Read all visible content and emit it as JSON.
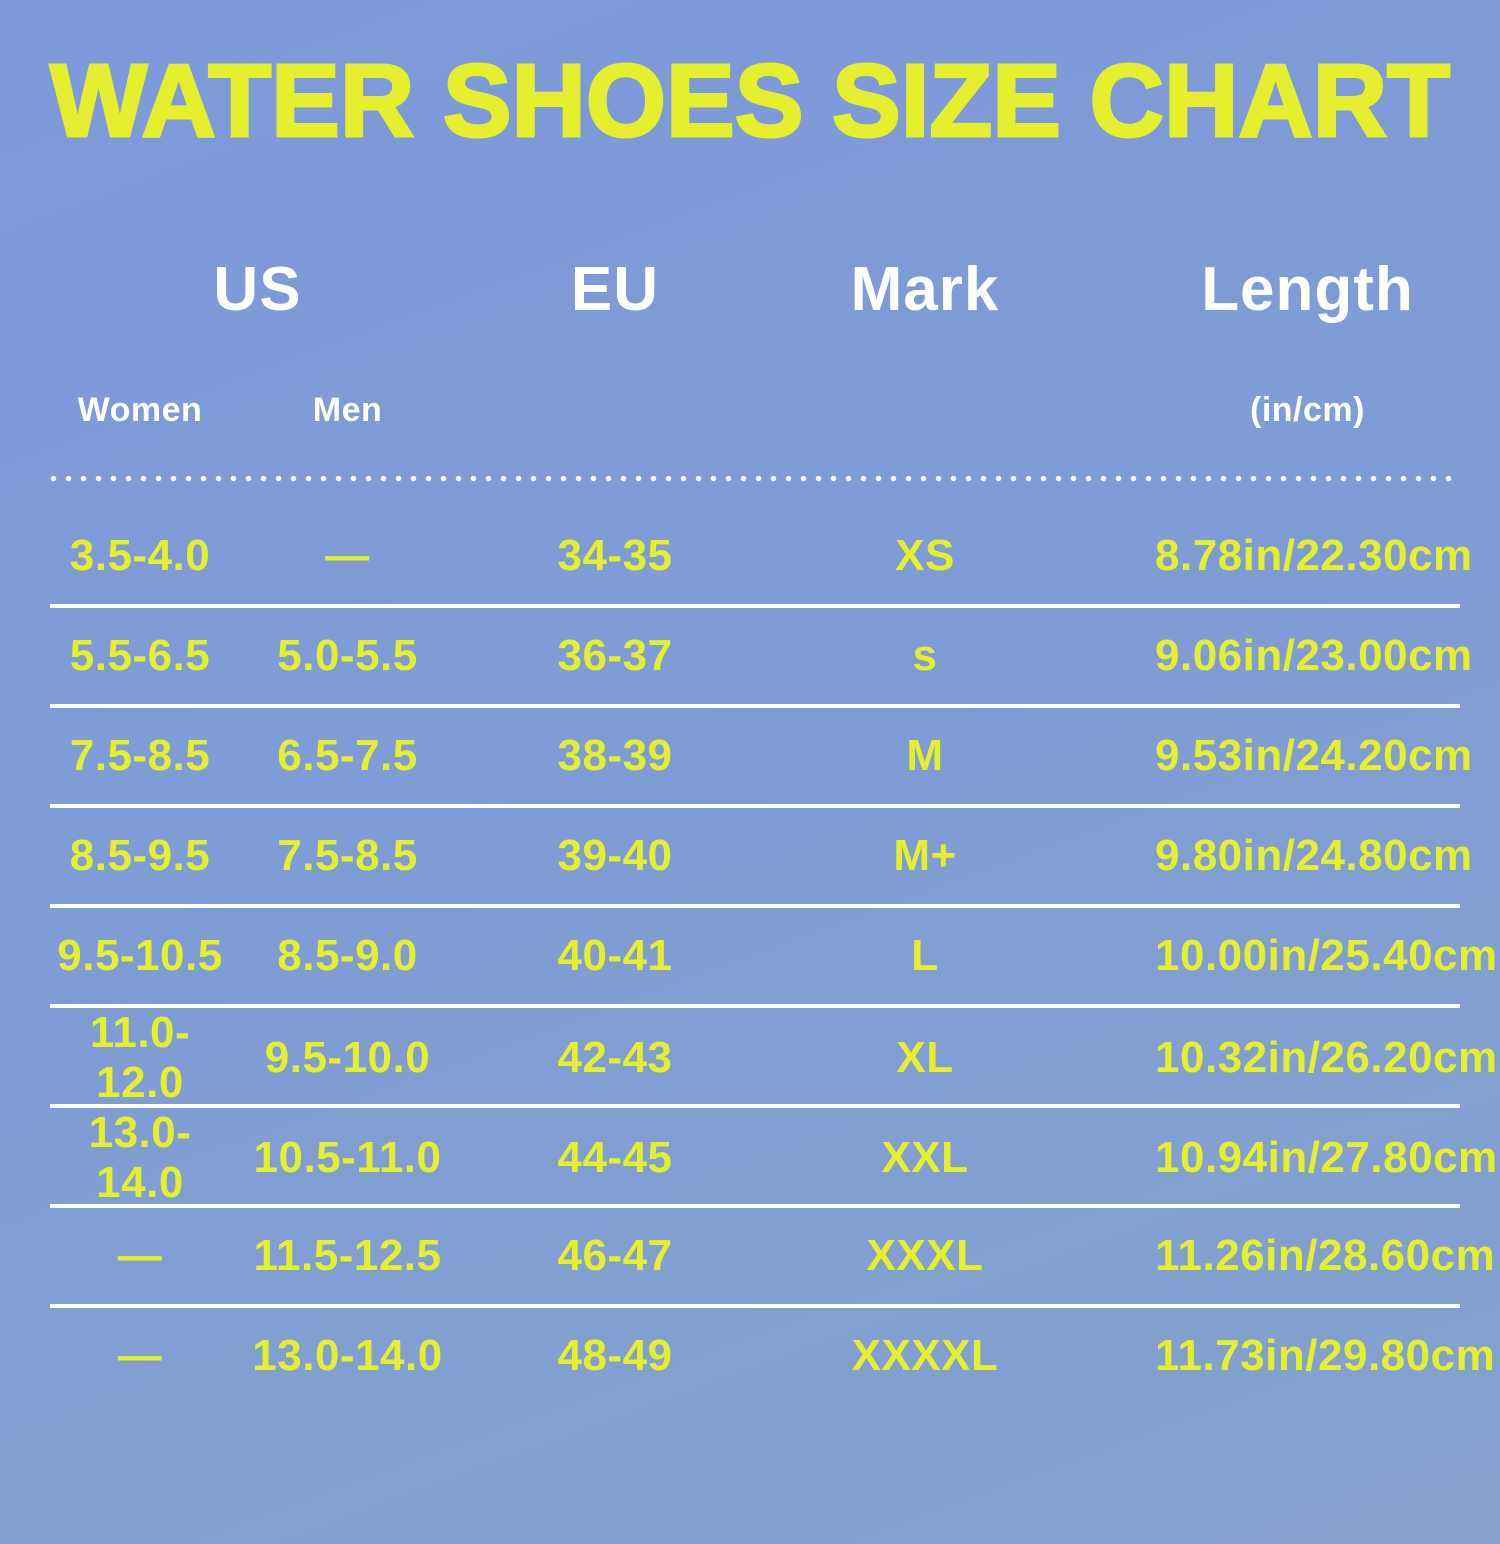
{
  "title": "WATER SHOES SIZE CHART",
  "colors": {
    "background_top": "#7d99da",
    "background_bottom": "#84a2cc",
    "accent_yellow": "#e5ef2e",
    "text_white": "#ffffff"
  },
  "table": {
    "headers": {
      "us": "US",
      "eu": "EU",
      "mark": "Mark",
      "length": "Length"
    },
    "subheaders": {
      "women": "Women",
      "men": "Men",
      "length_unit": "(in/cm)"
    },
    "rows": [
      {
        "women": "3.5-4.0",
        "men": "—",
        "eu": "34-35",
        "mark": "XS",
        "length": "8.78in/22.30cm"
      },
      {
        "women": "5.5-6.5",
        "men": "5.0-5.5",
        "eu": "36-37",
        "mark": "s",
        "length": "9.06in/23.00cm"
      },
      {
        "women": "7.5-8.5",
        "men": "6.5-7.5",
        "eu": "38-39",
        "mark": "M",
        "length": "9.53in/24.20cm"
      },
      {
        "women": "8.5-9.5",
        "men": "7.5-8.5",
        "eu": "39-40",
        "mark": "M+",
        "length": "9.80in/24.80cm"
      },
      {
        "women": "9.5-10.5",
        "men": "8.5-9.0",
        "eu": "40-41",
        "mark": "L",
        "length": "10.00in/25.40cm"
      },
      {
        "women": "11.0-12.0",
        "men": "9.5-10.0",
        "eu": "42-43",
        "mark": "XL",
        "length": "10.32in/26.20cm"
      },
      {
        "women": "13.0-14.0",
        "men": "10.5-11.0",
        "eu": "44-45",
        "mark": "XXL",
        "length": "10.94in/27.80cm"
      },
      {
        "women": "—",
        "men": "11.5-12.5",
        "eu": "46-47",
        "mark": "XXXL",
        "length": "11.26in/28.60cm"
      },
      {
        "women": "—",
        "men": "13.0-14.0",
        "eu": "48-49",
        "mark": "XXXXL",
        "length": "11.73in/29.80cm"
      }
    ]
  },
  "chart_data": {
    "type": "table",
    "title": "WATER SHOES SIZE CHART",
    "columns": [
      "US Women",
      "US Men",
      "EU",
      "Mark",
      "Length (in/cm)"
    ],
    "rows": [
      [
        "3.5-4.0",
        "—",
        "34-35",
        "XS",
        "8.78in/22.30cm"
      ],
      [
        "5.5-6.5",
        "5.0-5.5",
        "36-37",
        "s",
        "9.06in/23.00cm"
      ],
      [
        "7.5-8.5",
        "6.5-7.5",
        "38-39",
        "M",
        "9.53in/24.20cm"
      ],
      [
        "8.5-9.5",
        "7.5-8.5",
        "39-40",
        "M+",
        "9.80in/24.80cm"
      ],
      [
        "9.5-10.5",
        "8.5-9.0",
        "40-41",
        "L",
        "10.00in/25.40cm"
      ],
      [
        "11.0-12.0",
        "9.5-10.0",
        "42-43",
        "XL",
        "10.32in/26.20cm"
      ],
      [
        "13.0-14.0",
        "10.5-11.0",
        "44-45",
        "XXL",
        "10.94in/27.80cm"
      ],
      [
        "—",
        "11.5-12.5",
        "46-47",
        "XXXL",
        "11.26in/28.60cm"
      ],
      [
        "—",
        "13.0-14.0",
        "48-49",
        "XXXXL",
        "11.73in/29.80cm"
      ]
    ]
  }
}
